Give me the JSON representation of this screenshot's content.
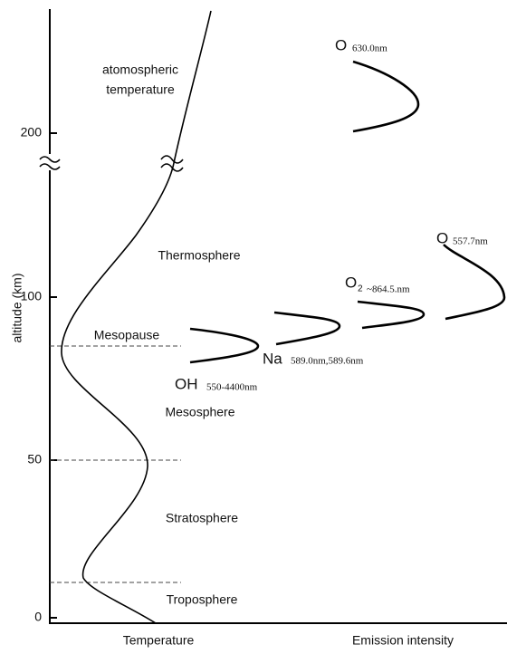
{
  "axis": {
    "y_label": "altitude (km)",
    "y_ticks": [
      "0",
      "50",
      "100",
      "200"
    ],
    "x_labels": [
      "Temperature",
      "Emission intensity"
    ]
  },
  "curve_label": [
    "atomospheric",
    "temperature"
  ],
  "layers": [
    "Thermosphere",
    "Mesopause",
    "Mesosphere",
    "Stratosphere",
    "Troposphere"
  ],
  "emissions": [
    {
      "species": "O",
      "wavelength": "630.0nm"
    },
    {
      "species": "O",
      "wavelength": "557.7nm"
    },
    {
      "species": "O",
      "subscript": "2",
      "wavelength": "~864.5.nm"
    },
    {
      "species": "Na",
      "wavelength": "589.0nm,589.6nm"
    },
    {
      "species": "OH",
      "wavelength": "550-4400nm"
    }
  ]
}
